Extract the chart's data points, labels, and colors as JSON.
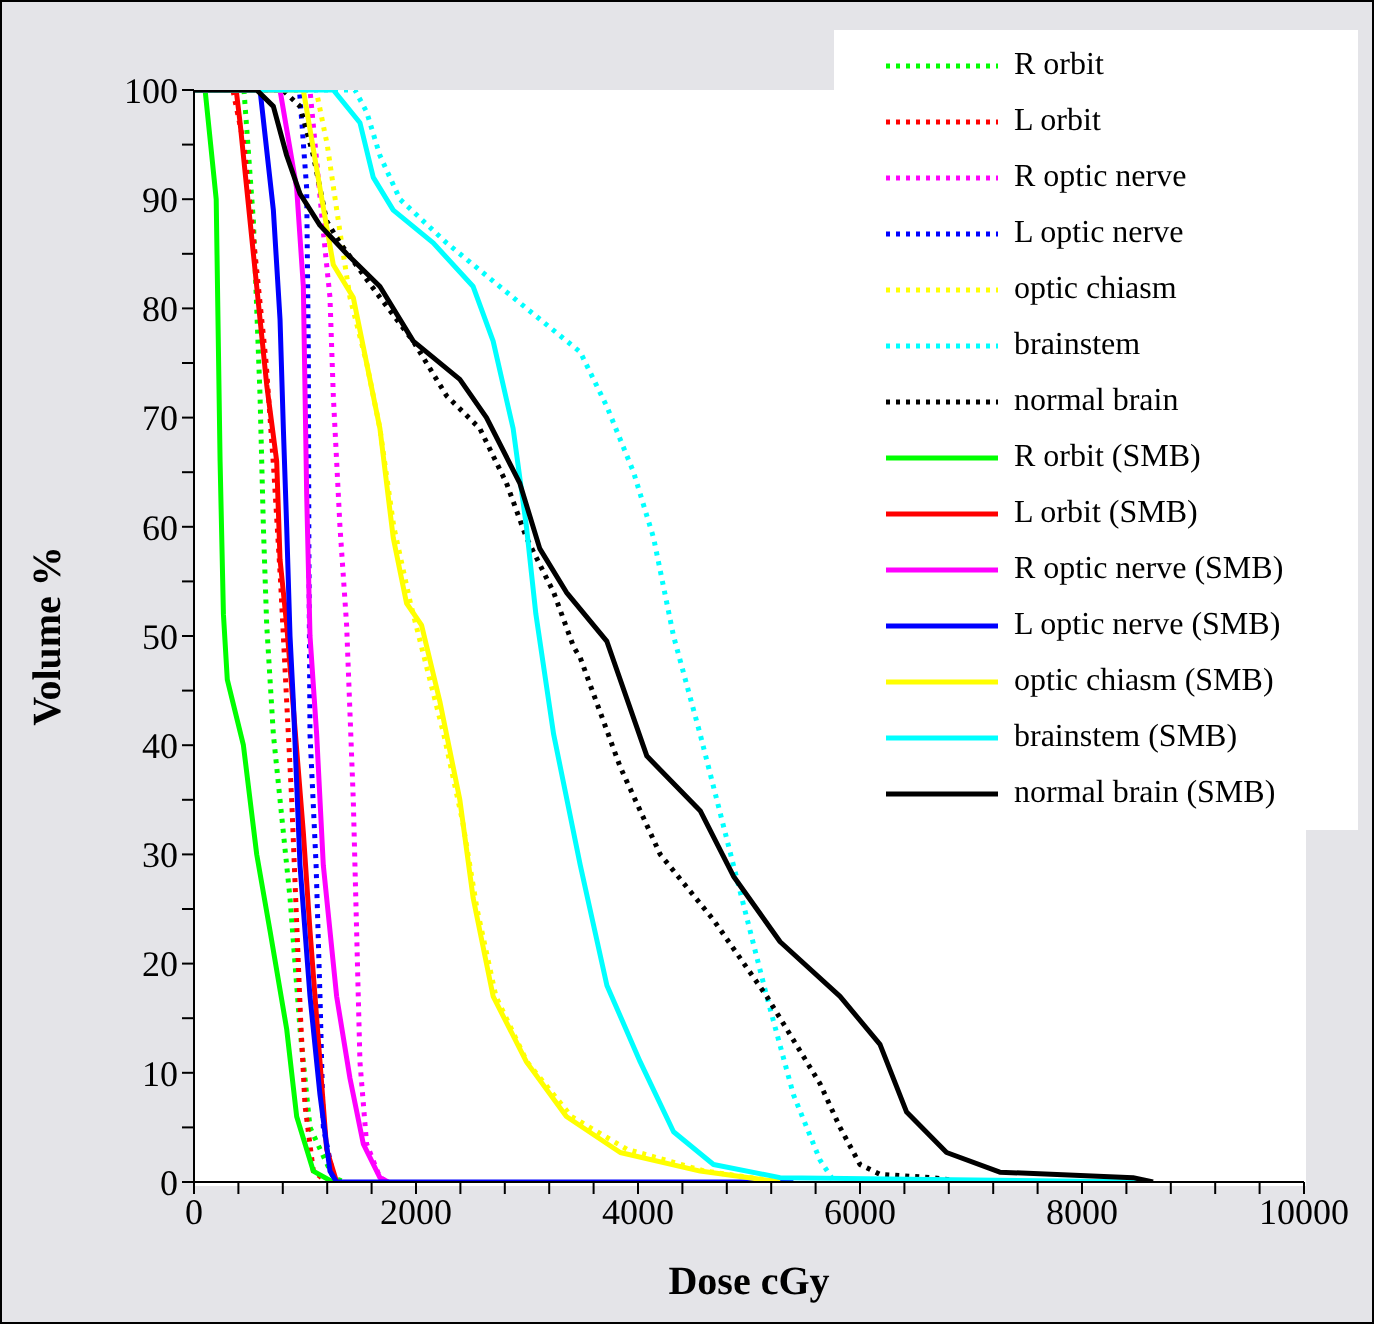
{
  "chart_data": {
    "type": "line",
    "xlabel": "Dose cGy",
    "ylabel": "Volume %",
    "xlim": [
      0,
      10000
    ],
    "ylim": [
      0,
      100
    ],
    "xticks": [
      0,
      {
        "value": 400,
        "label": null
      },
      {
        "value": 800,
        "label": null
      },
      {
        "value": 1200,
        "label": null
      },
      {
        "value": 1600,
        "label": null
      },
      2000,
      {
        "value": 2400,
        "label": null
      },
      {
        "value": 2800,
        "label": null
      },
      {
        "value": 3200,
        "label": null
      },
      {
        "value": 3600,
        "label": null
      },
      4000,
      {
        "value": 4400,
        "label": null
      },
      {
        "value": 4800,
        "label": null
      },
      {
        "value": 5200,
        "label": null
      },
      {
        "value": 5600,
        "label": null
      },
      6000,
      {
        "value": 6400,
        "label": null
      },
      {
        "value": 6800,
        "label": null
      },
      {
        "value": 7200,
        "label": null
      },
      {
        "value": 7600,
        "label": null
      },
      8000,
      {
        "value": 8400,
        "label": null
      },
      {
        "value": 8800,
        "label": null
      },
      {
        "value": 9200,
        "label": null
      },
      {
        "value": 9600,
        "label": null
      },
      10000
    ],
    "yticks": [
      0,
      {
        "value": 5,
        "label": null
      },
      10,
      {
        "value": 15,
        "label": null
      },
      20,
      {
        "value": 25,
        "label": null
      },
      30,
      {
        "value": 35,
        "label": null
      },
      40,
      {
        "value": 45,
        "label": null
      },
      50,
      {
        "value": 55,
        "label": null
      },
      60,
      {
        "value": 65,
        "label": null
      },
      70,
      {
        "value": 75,
        "label": null
      },
      80,
      {
        "value": 85,
        "label": null
      },
      90,
      {
        "value": 95,
        "label": null
      },
      100
    ],
    "grid": false,
    "legend": "top right",
    "marker": "none",
    "series": [
      {
        "name": "R orbit",
        "color": "#00ff00",
        "line_style": "dotted",
        "x": [
          0,
          450,
          535,
          595,
          625,
          655,
          715,
          775,
          865,
          955,
          1045,
          1255,
          1355
        ],
        "values": [
          100,
          100,
          88,
          72,
          60,
          51,
          41,
          35,
          26,
          14,
          5,
          0.4,
          0
        ]
      },
      {
        "name": "L orbit",
        "color": "#ff0000",
        "line_style": "dotted",
        "x": [
          0,
          350,
          450,
          550,
          650,
          720,
          780,
          830,
          880,
          920,
          960,
          1000,
          1075,
          1200
        ],
        "values": [
          100,
          100,
          95,
          85,
          75,
          65,
          55,
          45,
          35,
          25,
          15,
          7,
          1,
          0
        ]
      },
      {
        "name": "R optic nerve",
        "color": "#ff00ff",
        "line_style": "dotted",
        "x": [
          0,
          1045,
          1165,
          1225,
          1255,
          1315,
          1375,
          1435,
          1465,
          1495,
          1555,
          1675,
          1750
        ],
        "values": [
          100,
          100,
          87,
          81,
          72,
          60,
          51,
          35,
          23,
          11,
          3.5,
          0.4,
          0
        ]
      },
      {
        "name": "L optic nerve",
        "color": "#0000ff",
        "line_style": "dotted",
        "x": [
          0,
          950,
          1015,
          1030,
          1035,
          1045,
          1100,
          1135,
          1165,
          1255,
          1300
        ],
        "values": [
          100,
          100,
          91,
          76,
          58,
          41,
          29,
          17,
          5,
          0.5,
          0
        ]
      },
      {
        "name": "optic chiasm",
        "color": "#ffff00",
        "line_style": "dotted",
        "x": [
          0,
          1100,
          1200,
          1315,
          1405,
          1555,
          1675,
          1800,
          1950,
          2100,
          2250,
          2420,
          2550,
          2720,
          3000,
          3400,
          3900,
          4600,
          5300
        ],
        "values": [
          100,
          100,
          95,
          87,
          81,
          75,
          69,
          60,
          53,
          47,
          41,
          33,
          25,
          17,
          11,
          6,
          3,
          1,
          0
        ]
      },
      {
        "name": "brainstem",
        "color": "#00ffff",
        "line_style": "dotted",
        "x": [
          0,
          1450,
          1555,
          1675,
          1855,
          2275,
          2875,
          3480,
          3720,
          3960,
          4140,
          4320,
          4560,
          4860,
          5160,
          5400,
          5640,
          5770
        ],
        "values": [
          100,
          100,
          98,
          94,
          90,
          86,
          81,
          76,
          71,
          65,
          59,
          50,
          41,
          29,
          17,
          8,
          2,
          0
        ]
      },
      {
        "name": "normal brain",
        "color": "#000000",
        "line_style": "dotted",
        "x": [
          0,
          800,
          955,
          1075,
          1195,
          1315,
          1675,
          1975,
          2275,
          2575,
          2815,
          2995,
          3240,
          3420,
          3480,
          3840,
          4200,
          4680,
          5160,
          5640,
          5820,
          6000,
          6180,
          6660,
          6960
        ],
        "values": [
          100,
          100,
          98.5,
          94,
          88,
          86,
          81,
          77,
          72,
          69,
          64,
          59,
          54,
          49,
          48,
          38,
          30,
          24,
          17,
          9,
          5,
          1.6,
          0.7,
          0.4,
          0
        ]
      },
      {
        "name": "R orbit (SMB)",
        "color": "#00ff00",
        "line_style": "solid",
        "x": [
          0,
          100,
          150,
          200,
          235,
          265,
          300,
          445,
          565,
          685,
          835,
          925,
          1075,
          1250
        ],
        "values": [
          100,
          100,
          95,
          90,
          66,
          52,
          46,
          40,
          30,
          23,
          14,
          6,
          1,
          0
        ]
      },
      {
        "name": "L orbit (SMB)",
        "color": "#ff0000",
        "line_style": "solid",
        "x": [
          0,
          380,
          415,
          475,
          565,
          655,
          745,
          775,
          835,
          985,
          1045,
          1135,
          1195,
          1285
        ],
        "values": [
          100,
          100,
          97,
          91,
          82,
          73,
          66,
          57,
          51,
          32,
          23,
          11,
          3,
          0
        ]
      },
      {
        "name": "R optic nerve (SMB)",
        "color": "#ff00ff",
        "line_style": "solid",
        "x": [
          0,
          775,
          925,
          985,
          1015,
          1045,
          1105,
          1165,
          1285,
          1405,
          1525,
          1675,
          1750
        ],
        "values": [
          100,
          100,
          91,
          82,
          63,
          50,
          41,
          29,
          17,
          9.5,
          3.5,
          0.4,
          0
        ]
      },
      {
        "name": "L optic nerve (SMB)",
        "color": "#0000ff",
        "line_style": "solid",
        "x": [
          0,
          595,
          715,
          775,
          805,
          835,
          865,
          895,
          955,
          1045,
          1135,
          1225,
          1285,
          5400
        ],
        "values": [
          100,
          100,
          89,
          79,
          69,
          60,
          50,
          44,
          29,
          17,
          8,
          1,
          0,
          0
        ]
      },
      {
        "name": "optic chiasm (SMB)",
        "color": "#ffff00",
        "line_style": "solid",
        "x": [
          0,
          985,
          1135,
          1255,
          1435,
          1555,
          1675,
          1795,
          1915,
          2050,
          2215,
          2395,
          2515,
          2695,
          2995,
          3355,
          3840,
          4560,
          5280
        ],
        "values": [
          100,
          100,
          91,
          84,
          81,
          75,
          69,
          59,
          53,
          51,
          44,
          35,
          26,
          17,
          11,
          6,
          2.7,
          1,
          0
        ]
      },
      {
        "name": "brainstem (SMB)",
        "color": "#00ffff",
        "line_style": "solid",
        "x": [
          0,
          1255,
          1495,
          1615,
          1795,
          2155,
          2515,
          2695,
          2875,
          2995,
          3080,
          3240,
          3480,
          3720,
          4020,
          4320,
          4680,
          5280,
          8580
        ],
        "values": [
          100,
          100,
          97,
          92,
          89,
          86,
          82,
          77,
          69,
          60,
          52,
          41,
          29,
          18,
          11,
          4.6,
          1.6,
          0.4,
          0
        ]
      },
      {
        "name": "normal brain (SMB)",
        "color": "#000000",
        "line_style": "solid",
        "x": [
          0,
          565,
          715,
          835,
          955,
          1135,
          1375,
          1675,
          1975,
          2395,
          2635,
          2935,
          3115,
          3355,
          3720,
          4080,
          4560,
          4860,
          5280,
          5820,
          6180,
          6420,
          6780,
          7260,
          8460,
          8640
        ],
        "values": [
          100,
          100,
          98.5,
          94,
          90.5,
          87.6,
          85,
          82,
          77,
          73.5,
          70,
          64,
          58,
          54,
          49.5,
          39,
          34,
          28,
          22,
          17,
          12.6,
          6.4,
          2.7,
          0.9,
          0.4,
          0
        ]
      }
    ]
  }
}
